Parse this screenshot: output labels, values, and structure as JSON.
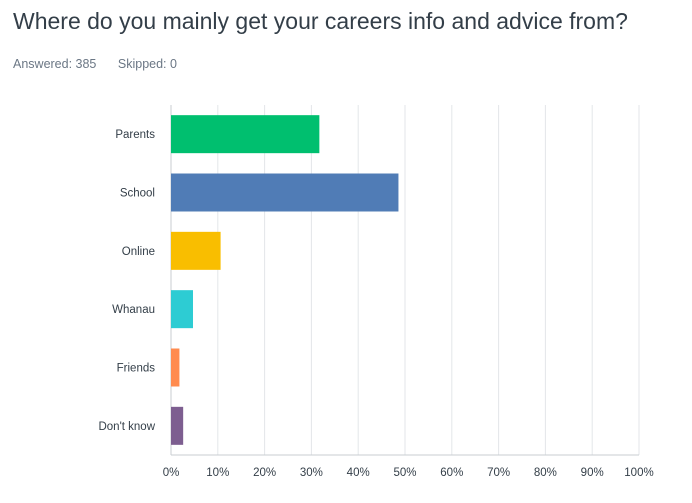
{
  "header": {
    "title": "Where do you mainly get your careers info and advice from?",
    "answered": "Answered: 385",
    "skipped": "Skipped: 0"
  },
  "chart_data": {
    "type": "bar",
    "orientation": "horizontal",
    "categories": [
      "Parents",
      "School",
      "Online",
      "Whanau",
      "Friends",
      "Don't know"
    ],
    "values": [
      31.7,
      48.6,
      10.6,
      4.7,
      1.8,
      2.6
    ],
    "colors": [
      "#00bf6f",
      "#507cb6",
      "#f9be00",
      "#2dccd3",
      "#ff8b4f",
      "#7d5e90"
    ],
    "xlim": [
      0,
      100
    ],
    "xticks": [
      "0%",
      "10%",
      "20%",
      "30%",
      "40%",
      "50%",
      "60%",
      "70%",
      "80%",
      "90%",
      "100%"
    ],
    "grid": true
  }
}
